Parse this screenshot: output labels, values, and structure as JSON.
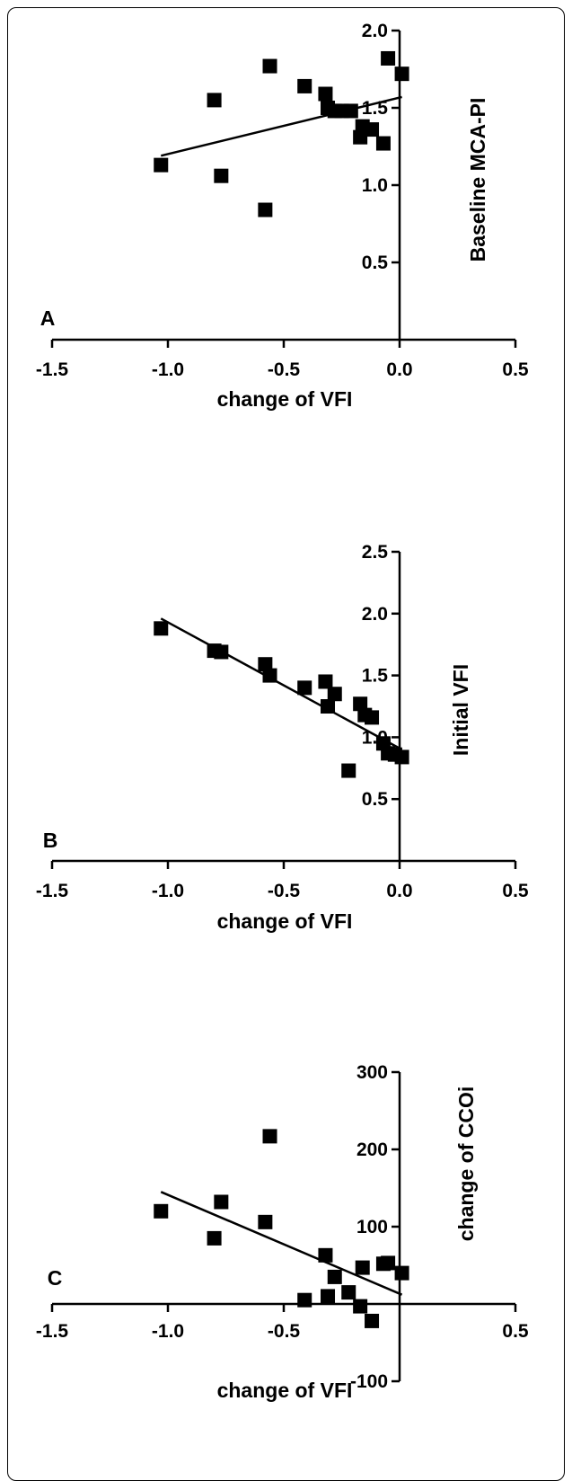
{
  "chart_data": [
    {
      "type": "scatter",
      "panel_label": "A",
      "xlabel": "change of VFI",
      "ylabel": "Baseline MCA-PI",
      "xlim": [
        -1.5,
        0.5
      ],
      "ylim": [
        0,
        2.0
      ],
      "x_ticks": [
        "-1.5",
        "-1.0",
        "-0.5",
        "0.0",
        "0.5"
      ],
      "y_ticks": [
        "0.5",
        "1.0",
        "1.5",
        "2.0"
      ],
      "points": [
        {
          "x": -1.03,
          "y": 1.13
        },
        {
          "x": -0.8,
          "y": 1.55
        },
        {
          "x": -0.77,
          "y": 1.06
        },
        {
          "x": -0.58,
          "y": 0.84
        },
        {
          "x": -0.56,
          "y": 1.77
        },
        {
          "x": -0.41,
          "y": 1.64
        },
        {
          "x": -0.32,
          "y": 1.59
        },
        {
          "x": -0.31,
          "y": 1.5
        },
        {
          "x": -0.28,
          "y": 1.48
        },
        {
          "x": -0.25,
          "y": 1.48
        },
        {
          "x": -0.21,
          "y": 1.48
        },
        {
          "x": -0.17,
          "y": 1.31
        },
        {
          "x": -0.16,
          "y": 1.38
        },
        {
          "x": -0.12,
          "y": 1.36
        },
        {
          "x": -0.07,
          "y": 1.27
        },
        {
          "x": -0.05,
          "y": 1.82
        },
        {
          "x": 0.01,
          "y": 1.72
        }
      ],
      "regression": [
        {
          "x": -1.03,
          "y": 1.19
        },
        {
          "x": 0.01,
          "y": 1.57
        }
      ]
    },
    {
      "type": "scatter",
      "panel_label": "B",
      "xlabel": "change of VFI",
      "ylabel": "Initial VFI",
      "xlim": [
        -1.5,
        0.5
      ],
      "ylim": [
        0,
        2.5
      ],
      "x_ticks": [
        "-1.5",
        "-1.0",
        "-0.5",
        "0.0",
        "0.5"
      ],
      "y_ticks": [
        "0.5",
        "1.0",
        "1.5",
        "2.0",
        "2.5"
      ],
      "points": [
        {
          "x": -1.03,
          "y": 1.88
        },
        {
          "x": -0.8,
          "y": 1.7
        },
        {
          "x": -0.77,
          "y": 1.69
        },
        {
          "x": -0.58,
          "y": 1.59
        },
        {
          "x": -0.56,
          "y": 1.5
        },
        {
          "x": -0.41,
          "y": 1.4
        },
        {
          "x": -0.32,
          "y": 1.45
        },
        {
          "x": -0.31,
          "y": 1.25
        },
        {
          "x": -0.28,
          "y": 1.35
        },
        {
          "x": -0.22,
          "y": 0.73
        },
        {
          "x": -0.17,
          "y": 1.27
        },
        {
          "x": -0.15,
          "y": 1.18
        },
        {
          "x": -0.12,
          "y": 1.16
        },
        {
          "x": -0.07,
          "y": 0.95
        },
        {
          "x": -0.05,
          "y": 0.87
        },
        {
          "x": -0.02,
          "y": 0.86
        },
        {
          "x": 0.01,
          "y": 0.84
        }
      ],
      "regression": [
        {
          "x": -1.03,
          "y": 1.96
        },
        {
          "x": 0.01,
          "y": 0.9
        }
      ]
    },
    {
      "type": "scatter",
      "panel_label": "C",
      "xlabel": "change of VFI",
      "ylabel": "change of CCOi",
      "xlim": [
        -1.5,
        0.5
      ],
      "ylim": [
        -100,
        300
      ],
      "x_ticks": [
        "-1.5",
        "-1.0",
        "-0.5",
        "0.5"
      ],
      "y_ticks": [
        "-100",
        "100",
        "200",
        "300"
      ],
      "points": [
        {
          "x": -1.03,
          "y": 120
        },
        {
          "x": -0.8,
          "y": 85
        },
        {
          "x": -0.77,
          "y": 132
        },
        {
          "x": -0.58,
          "y": 106
        },
        {
          "x": -0.56,
          "y": 217
        },
        {
          "x": -0.41,
          "y": 5
        },
        {
          "x": -0.32,
          "y": 63
        },
        {
          "x": -0.31,
          "y": 10
        },
        {
          "x": -0.28,
          "y": 35
        },
        {
          "x": -0.22,
          "y": 15
        },
        {
          "x": -0.17,
          "y": -3
        },
        {
          "x": -0.16,
          "y": 47
        },
        {
          "x": -0.12,
          "y": -22
        },
        {
          "x": -0.07,
          "y": 52
        },
        {
          "x": -0.05,
          "y": 53
        },
        {
          "x": 0.01,
          "y": 40
        }
      ],
      "regression": [
        {
          "x": -1.03,
          "y": 145
        },
        {
          "x": 0.01,
          "y": 12
        }
      ]
    }
  ]
}
